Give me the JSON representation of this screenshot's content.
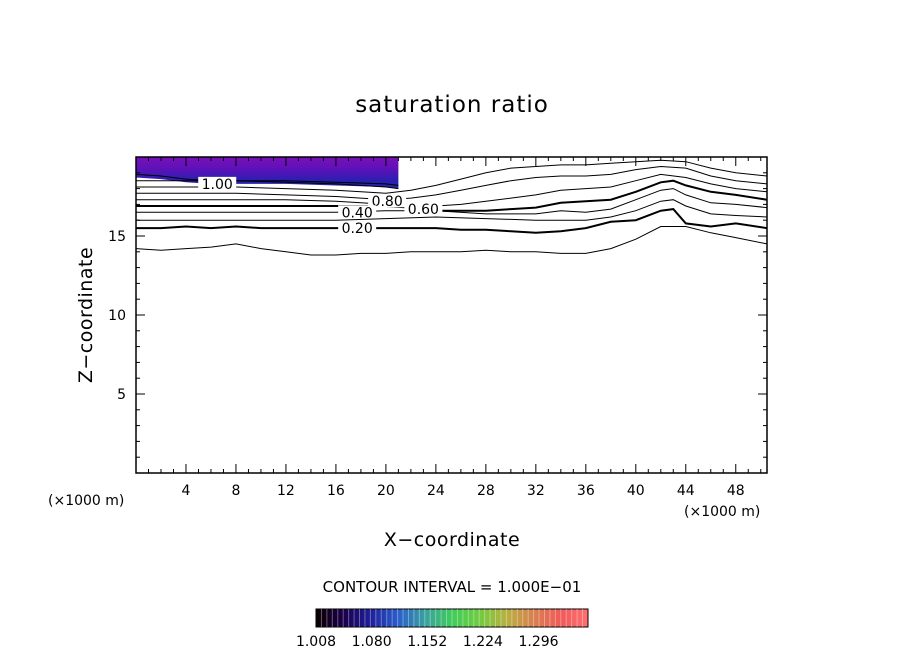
{
  "chart_data": {
    "type": "contour",
    "title": "saturation ratio",
    "xlabel": "X−coordinate",
    "ylabel": "Z−coordinate",
    "x_unit_left": "(×1000 m)",
    "x_unit_right": "(×1000 m)",
    "xlim": [
      0,
      50.5
    ],
    "ylim": [
      0,
      20
    ],
    "xticks": [
      4,
      8,
      12,
      16,
      20,
      24,
      28,
      32,
      36,
      40,
      44,
      48
    ],
    "yticks": [
      5,
      10,
      15
    ],
    "grid": false,
    "contour_interval_text": "CONTOUR INTERVAL = 1.000E−01",
    "contour_labels": [
      {
        "text": "1.00",
        "x": 6.5,
        "y": 18.3
      },
      {
        "text": "0.80",
        "x": 20.1,
        "y": 17.2
      },
      {
        "text": "0.60",
        "x": 23.0,
        "y": 16.7
      },
      {
        "text": "0.40",
        "x": 17.7,
        "y": 16.5
      },
      {
        "text": "0.20",
        "x": 17.7,
        "y": 15.5
      }
    ],
    "contour_levels": [
      0.1,
      0.2,
      0.3,
      0.4,
      0.5,
      0.6,
      0.7,
      0.8,
      0.9,
      1.0
    ],
    "filled_region": {
      "x_range": [
        0,
        21
      ],
      "y_range": [
        18.0,
        20
      ],
      "min": 1.008,
      "max": 1.36
    },
    "colorbar": {
      "ticks": [
        "1.008",
        "1.080",
        "1.152",
        "1.224",
        "1.296"
      ],
      "range": [
        1.008,
        1.36
      ],
      "colors": [
        "#0a0000",
        "#1a004a",
        "#1f1f9a",
        "#2a5ccc",
        "#3aa0a0",
        "#3fcc5a",
        "#70cc40",
        "#b8b040",
        "#d88050",
        "#f05a5a",
        "#ff7070"
      ]
    },
    "contours": [
      {
        "level": 0.1,
        "bold": false,
        "x": [
          0,
          2,
          4,
          6,
          8,
          10,
          12,
          14,
          16,
          18,
          20,
          22,
          24,
          26,
          28,
          30,
          32,
          34,
          36,
          38,
          40,
          42,
          44,
          46,
          48,
          50.5
        ],
        "y": [
          14.2,
          14.1,
          14.2,
          14.3,
          14.5,
          14.2,
          14.0,
          13.8,
          13.8,
          13.9,
          13.9,
          14.0,
          14.0,
          14.0,
          14.1,
          14.0,
          14.0,
          13.9,
          13.9,
          14.2,
          14.8,
          15.6,
          15.6,
          15.2,
          14.9,
          14.5
        ]
      },
      {
        "level": 0.2,
        "bold": true,
        "x": [
          0,
          2,
          4,
          6,
          8,
          10,
          12,
          14,
          16,
          18,
          20,
          22,
          24,
          26,
          28,
          30,
          32,
          34,
          36,
          38,
          40,
          42,
          43,
          44,
          46,
          48,
          50.5
        ],
        "y": [
          15.5,
          15.5,
          15.6,
          15.5,
          15.6,
          15.5,
          15.5,
          15.5,
          15.5,
          15.5,
          15.5,
          15.5,
          15.5,
          15.4,
          15.4,
          15.3,
          15.2,
          15.3,
          15.5,
          15.9,
          16.0,
          16.6,
          16.7,
          15.8,
          15.6,
          15.8,
          15.5
        ]
      },
      {
        "level": 0.3,
        "bold": false,
        "x": [
          0,
          4,
          8,
          12,
          16,
          20,
          24,
          28,
          32,
          36,
          38,
          40,
          42,
          43,
          44,
          46,
          48,
          50.5
        ],
        "y": [
          16.0,
          16.0,
          16.0,
          16.0,
          16.0,
          16.1,
          16.2,
          16.1,
          16.0,
          16.0,
          16.2,
          16.6,
          17.2,
          17.3,
          16.9,
          16.4,
          16.3,
          16.2
        ]
      },
      {
        "level": 0.4,
        "bold": false,
        "x": [
          0,
          4,
          8,
          12,
          16,
          20,
          24,
          28,
          32,
          34,
          36,
          38,
          40,
          42,
          43,
          44,
          46,
          48,
          50.5
        ],
        "y": [
          16.5,
          16.5,
          16.5,
          16.5,
          16.5,
          16.6,
          16.6,
          16.4,
          16.4,
          16.6,
          16.5,
          16.7,
          17.3,
          17.9,
          18.0,
          17.6,
          17.1,
          17.0,
          16.8
        ]
      },
      {
        "level": 0.5,
        "bold": true,
        "x": [
          0,
          4,
          8,
          12,
          16,
          20,
          22,
          24,
          26,
          28,
          30,
          32,
          34,
          36,
          38,
          40,
          42,
          43,
          44,
          46,
          48,
          50.5
        ],
        "y": [
          16.9,
          16.9,
          16.9,
          16.9,
          16.9,
          16.9,
          16.8,
          16.6,
          16.6,
          16.6,
          16.7,
          16.8,
          17.1,
          17.2,
          17.3,
          17.8,
          18.4,
          18.5,
          18.2,
          17.8,
          17.6,
          17.3
        ]
      },
      {
        "level": 0.6,
        "bold": false,
        "x": [
          0,
          4,
          8,
          12,
          16,
          18,
          20,
          22,
          24,
          26,
          28,
          30,
          32,
          34,
          36,
          38,
          40,
          42,
          44,
          46,
          48,
          50.5
        ],
        "y": [
          17.3,
          17.3,
          17.3,
          17.3,
          17.2,
          17.1,
          17.0,
          16.9,
          16.9,
          17.0,
          17.2,
          17.4,
          17.6,
          17.9,
          18.0,
          18.1,
          18.5,
          18.9,
          18.7,
          18.3,
          18.0,
          17.8
        ]
      },
      {
        "level": 0.7,
        "bold": false,
        "x": [
          0,
          4,
          8,
          12,
          16,
          20,
          22,
          24,
          26,
          28,
          30,
          32,
          34,
          36,
          38,
          40,
          42,
          44,
          46,
          48,
          50.5
        ],
        "y": [
          17.7,
          17.7,
          17.7,
          17.6,
          17.5,
          17.3,
          17.4,
          17.6,
          17.9,
          18.2,
          18.5,
          18.7,
          18.8,
          18.8,
          18.9,
          19.2,
          19.4,
          19.3,
          18.8,
          18.5,
          18.3
        ]
      },
      {
        "level": 0.8,
        "bold": false,
        "x": [
          0,
          4,
          8,
          12,
          16,
          20,
          22,
          24,
          26,
          28,
          30,
          32,
          34,
          36,
          38,
          40,
          42,
          44,
          46,
          48,
          50.5
        ],
        "y": [
          18.1,
          18.1,
          18.1,
          18.0,
          17.9,
          17.7,
          17.9,
          18.2,
          18.6,
          19.0,
          19.3,
          19.4,
          19.5,
          19.5,
          19.6,
          19.7,
          19.8,
          19.7,
          19.3,
          19.0,
          18.8
        ]
      },
      {
        "level": 0.9,
        "bold": false,
        "x": [
          0,
          4,
          8,
          12,
          16,
          20,
          21
        ],
        "y": [
          18.5,
          18.5,
          18.5,
          18.4,
          18.3,
          18.1,
          18.0
        ]
      },
      {
        "level": 1.0,
        "bold": false,
        "x": [
          0,
          2,
          4,
          6,
          8,
          12,
          16,
          20,
          21
        ],
        "y": [
          18.9,
          18.8,
          18.6,
          18.5,
          18.5,
          18.5,
          18.4,
          18.3,
          18.2
        ]
      }
    ]
  }
}
